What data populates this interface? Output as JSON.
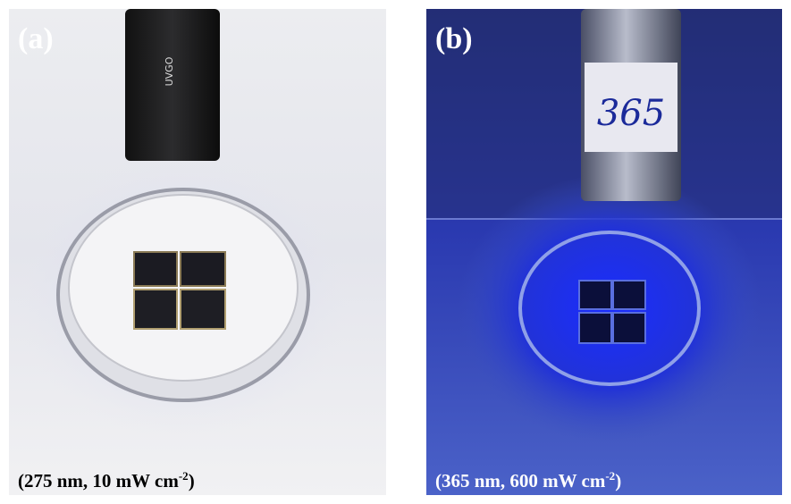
{
  "panels": [
    {
      "label": "(a)",
      "lamp_text": "UVGO",
      "caption": {
        "text": "(275 nm, 10 mW cm",
        "superscript": "-2",
        "close": ")"
      }
    },
    {
      "label": "(b)",
      "lamp_text": "365",
      "caption": {
        "text": "(365 nm, 600 mW cm",
        "superscript": "-2",
        "close": ")"
      }
    }
  ]
}
